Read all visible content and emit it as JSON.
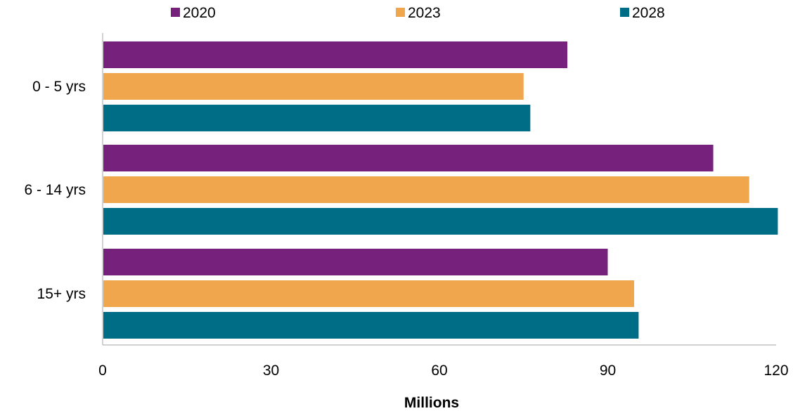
{
  "chart_data": {
    "type": "bar",
    "orientation": "horizontal",
    "categories": [
      "0 - 5 yrs",
      "6 - 14 yrs",
      "15+ yrs"
    ],
    "series": [
      {
        "name": "2020",
        "values": [
          82.8,
          108.8,
          90.0
        ],
        "color": "#76217c"
      },
      {
        "name": "2023",
        "values": [
          75.0,
          115.2,
          94.7
        ],
        "color": "#f0a64c"
      },
      {
        "name": "2028",
        "values": [
          76.2,
          120.3,
          95.5
        ],
        "color": "#006d87"
      }
    ],
    "xlabel": "Millions",
    "ylabel": "",
    "xlim": [
      0,
      120
    ],
    "xticks": [
      "0",
      "30",
      "60",
      "90",
      "120"
    ],
    "grid": false,
    "legend_position": "top"
  }
}
